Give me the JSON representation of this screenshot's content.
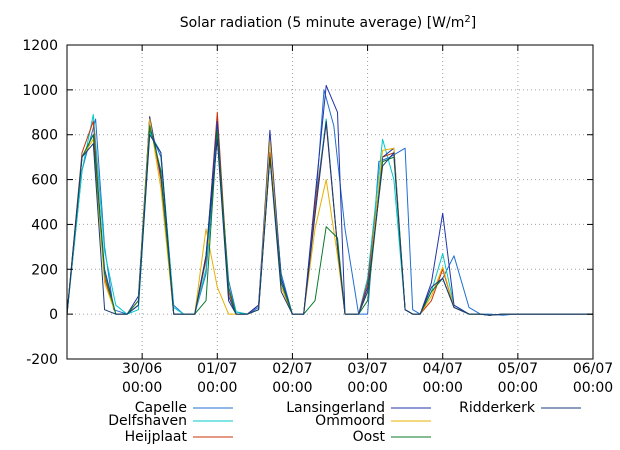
{
  "chart_data": {
    "type": "line",
    "title": "Solar radiation (5 minute average) [W/m",
    "title_superscript": "2",
    "title_suffix": "]",
    "xlabel": "",
    "ylabel": "",
    "ylim": [
      -200,
      1200
    ],
    "y_ticks": [
      -200,
      0,
      200,
      400,
      600,
      800,
      1000,
      1200
    ],
    "y_tick_labels": [
      "-200",
      "0",
      "200",
      "400",
      "600",
      "800",
      "1000",
      "1200"
    ],
    "xlim": [
      29.0,
      36.0
    ],
    "x_ticks": [
      30,
      31,
      32,
      33,
      34,
      35,
      36
    ],
    "x_tick_labels": [
      {
        "date": "30/06",
        "time": "00:00"
      },
      {
        "date": "01/07",
        "time": "00:00"
      },
      {
        "date": "02/07",
        "time": "00:00"
      },
      {
        "date": "03/07",
        "time": "00:00"
      },
      {
        "date": "04/07",
        "time": "00:00"
      },
      {
        "date": "05/07",
        "time": "00:00"
      },
      {
        "date": "06/07",
        "time": "00:00"
      }
    ],
    "x_unit_note": "x values are days counted from 29/06 00:00 offset (30 = 30/06 00:00, 31 = 01/07 00:00)",
    "grid": true,
    "legend_placement": "bottom",
    "series": [
      {
        "name": "Capelle",
        "color": "#1f6fd1",
        "x": [
          29.0,
          29.2,
          29.38,
          29.5,
          29.62,
          29.8,
          29.95,
          30.1,
          30.25,
          30.42,
          30.55,
          30.7,
          30.85,
          31.0,
          31.15,
          31.25,
          31.4,
          31.55,
          31.7,
          31.85,
          32.0,
          32.15,
          32.3,
          32.42,
          32.55,
          32.7,
          32.88,
          33.0,
          33.15,
          33.3,
          33.5,
          33.6,
          33.7,
          33.85,
          34.0,
          34.15,
          34.35,
          34.5,
          34.62,
          34.8,
          34.95,
          35.1,
          35.3,
          35.45,
          35.6,
          35.8,
          36.0
        ],
        "y": [
          0,
          640,
          870,
          300,
          20,
          0,
          40,
          820,
          700,
          40,
          0,
          0,
          180,
          800,
          150,
          10,
          0,
          30,
          720,
          180,
          0,
          0,
          460,
          1000,
          840,
          380,
          0,
          0,
          680,
          700,
          740,
          20,
          0,
          100,
          160,
          260,
          30,
          0,
          0,
          -5,
          0,
          0,
          0,
          0,
          0,
          0,
          0
        ]
      },
      {
        "name": "Delfshaven",
        "color": "#00c8c8",
        "x": [
          29.0,
          29.2,
          29.35,
          29.5,
          29.65,
          29.8,
          29.95,
          30.1,
          30.25,
          30.42,
          30.55,
          30.7,
          30.85,
          31.0,
          31.15,
          31.25,
          31.4,
          31.55,
          31.7,
          31.85,
          32.0,
          32.15,
          32.3,
          32.45,
          32.6,
          32.7,
          32.88,
          33.0,
          33.2,
          33.35,
          33.5,
          33.6,
          33.7,
          33.85,
          34.0,
          34.15,
          34.35,
          34.5,
          34.62,
          34.8,
          34.95,
          35.1,
          35.3,
          35.45,
          35.6,
          35.8,
          36.0
        ],
        "y": [
          0,
          640,
          890,
          280,
          40,
          0,
          20,
          810,
          720,
          30,
          0,
          0,
          200,
          840,
          120,
          10,
          0,
          20,
          700,
          160,
          0,
          0,
          480,
          870,
          300,
          0,
          0,
          160,
          780,
          600,
          20,
          0,
          0,
          100,
          270,
          40,
          0,
          0,
          -5,
          0,
          0,
          0,
          0,
          0,
          0,
          0,
          0
        ]
      },
      {
        "name": "Heijplaat",
        "color": "#c8330a",
        "x": [
          29.0,
          29.2,
          29.35,
          29.5,
          29.65,
          29.8,
          29.95,
          30.1,
          30.25,
          30.42,
          30.55,
          30.7,
          30.85,
          31.0,
          31.15,
          31.25,
          31.4,
          31.55,
          31.7,
          31.85,
          32.0,
          32.15,
          32.3,
          32.45,
          32.6,
          32.7,
          32.88,
          33.0,
          33.2,
          33.35,
          33.5,
          33.6,
          33.7,
          33.85,
          34.0,
          34.15,
          34.35,
          34.5,
          34.62,
          34.8,
          34.95,
          35.1,
          35.3,
          35.45,
          35.6,
          35.8,
          36.0
        ],
        "y": [
          0,
          720,
          860,
          160,
          0,
          0,
          60,
          880,
          600,
          0,
          0,
          0,
          240,
          900,
          100,
          0,
          0,
          40,
          720,
          140,
          0,
          0,
          480,
          850,
          300,
          0,
          0,
          140,
          700,
          720,
          20,
          0,
          0,
          60,
          200,
          30,
          0,
          0,
          -5,
          0,
          0,
          0,
          0,
          0,
          0,
          0,
          0
        ]
      },
      {
        "name": "Lansingerland",
        "color": "#2233aa",
        "x": [
          29.0,
          29.2,
          29.35,
          29.5,
          29.65,
          29.8,
          29.95,
          30.1,
          30.25,
          30.42,
          30.55,
          30.7,
          30.85,
          31.0,
          31.15,
          31.25,
          31.4,
          31.55,
          31.7,
          31.85,
          32.0,
          32.15,
          32.3,
          32.45,
          32.6,
          32.7,
          32.88,
          33.0,
          33.2,
          33.35,
          33.5,
          33.6,
          33.7,
          33.85,
          34.0,
          34.15,
          34.35,
          34.5,
          34.62,
          34.8,
          34.95,
          35.1,
          35.3,
          35.45,
          35.6,
          35.8,
          36.0
        ],
        "y": [
          0,
          700,
          800,
          200,
          0,
          0,
          80,
          880,
          620,
          0,
          0,
          0,
          260,
          860,
          80,
          0,
          0,
          40,
          820,
          160,
          0,
          0,
          520,
          1020,
          900,
          0,
          0,
          120,
          700,
          740,
          20,
          0,
          0,
          140,
          450,
          40,
          0,
          0,
          -5,
          0,
          0,
          0,
          0,
          0,
          0,
          0,
          0
        ]
      },
      {
        "name": "Ommoord",
        "color": "#e8b000",
        "x": [
          29.0,
          29.2,
          29.35,
          29.5,
          29.65,
          29.8,
          29.95,
          30.1,
          30.25,
          30.42,
          30.55,
          30.7,
          30.85,
          31.0,
          31.15,
          31.25,
          31.4,
          31.55,
          31.7,
          31.85,
          32.0,
          32.15,
          32.3,
          32.45,
          32.6,
          32.7,
          32.88,
          33.0,
          33.2,
          33.35,
          33.5,
          33.6,
          33.7,
          33.85,
          34.0,
          34.15,
          34.35,
          34.5,
          34.62,
          34.8,
          34.95,
          35.1,
          35.3,
          35.45,
          35.6,
          35.8,
          36.0
        ],
        "y": [
          0,
          700,
          780,
          140,
          0,
          0,
          60,
          870,
          560,
          0,
          0,
          0,
          380,
          120,
          0,
          0,
          0,
          20,
          770,
          120,
          0,
          0,
          380,
          600,
          260,
          0,
          0,
          100,
          730,
          740,
          20,
          0,
          0,
          80,
          210,
          30,
          0,
          0,
          -5,
          0,
          0,
          0,
          0,
          0,
          0,
          0,
          0
        ]
      },
      {
        "name": "Oost",
        "color": "#0a7a2a",
        "x": [
          29.0,
          29.2,
          29.35,
          29.5,
          29.65,
          29.8,
          29.95,
          30.1,
          30.25,
          30.42,
          30.55,
          30.7,
          30.85,
          31.0,
          31.15,
          31.25,
          31.4,
          31.55,
          31.7,
          31.85,
          32.0,
          32.15,
          32.3,
          32.45,
          32.6,
          32.7,
          32.88,
          33.0,
          33.2,
          33.35,
          33.5,
          33.6,
          33.7,
          33.85,
          34.0,
          34.15,
          34.35,
          34.5,
          34.62,
          34.8,
          34.95,
          35.1,
          35.3,
          35.45,
          35.6,
          35.8,
          36.0
        ],
        "y": [
          0,
          700,
          800,
          180,
          0,
          0,
          60,
          840,
          640,
          0,
          0,
          0,
          60,
          820,
          120,
          0,
          0,
          20,
          700,
          140,
          0,
          0,
          60,
          390,
          340,
          0,
          0,
          60,
          680,
          700,
          20,
          0,
          0,
          100,
          160,
          30,
          0,
          0,
          -5,
          0,
          0,
          0,
          0,
          0,
          0,
          0,
          0
        ]
      },
      {
        "name": "Ridderkerk",
        "color": "#1a3a7a",
        "x": [
          29.0,
          29.2,
          29.35,
          29.5,
          29.65,
          29.8,
          29.95,
          30.1,
          30.25,
          30.42,
          30.55,
          30.7,
          30.85,
          31.0,
          31.15,
          31.25,
          31.4,
          31.55,
          31.7,
          31.85,
          32.0,
          32.15,
          32.3,
          32.45,
          32.6,
          32.7,
          32.88,
          33.0,
          33.2,
          33.35,
          33.5,
          33.6,
          33.7,
          33.85,
          34.0,
          34.15,
          34.35,
          34.5,
          34.62,
          34.8,
          34.95,
          35.1,
          35.3,
          35.45,
          35.6,
          35.8,
          36.0
        ],
        "y": [
          0,
          700,
          760,
          20,
          0,
          0,
          40,
          800,
          720,
          0,
          0,
          0,
          260,
          780,
          60,
          0,
          0,
          20,
          700,
          100,
          0,
          0,
          440,
          860,
          300,
          0,
          0,
          100,
          660,
          720,
          20,
          0,
          0,
          120,
          160,
          30,
          0,
          0,
          -5,
          0,
          0,
          0,
          0,
          0,
          0,
          0,
          0
        ]
      }
    ]
  }
}
